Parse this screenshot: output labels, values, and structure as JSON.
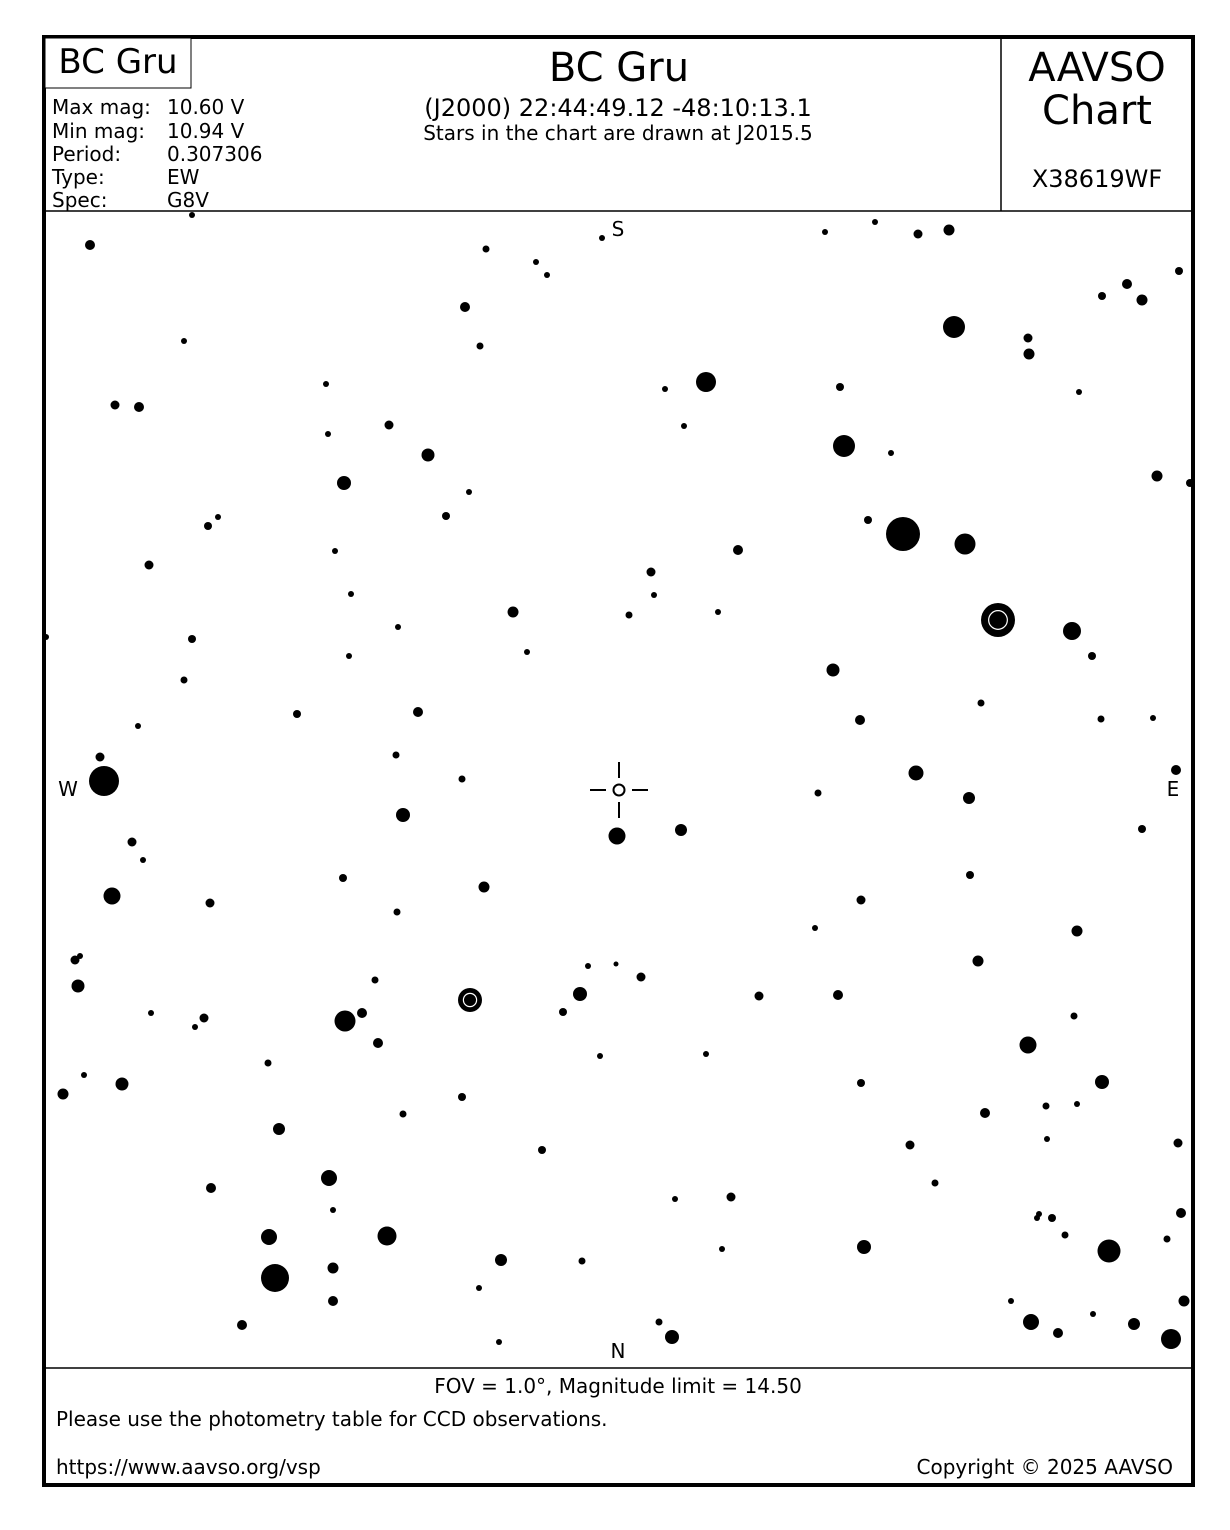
{
  "header": {
    "corner_name": "BC Gru",
    "title": "BC Gru",
    "coords": "(J2000) 22:44:49.12 -48:10:13.1",
    "epoch_note": "Stars in the chart are drawn at J2015.5",
    "brand_line1": "AAVSO",
    "brand_line2": "Chart",
    "chart_id": "X38619WF",
    "info": [
      {
        "label": "Max mag:",
        "value": "10.60 V"
      },
      {
        "label": "Min mag:",
        "value": "10.94 V"
      },
      {
        "label": "Period:",
        "value": "0.307306"
      },
      {
        "label": "Type:",
        "value": "EW"
      },
      {
        "label": "Spec:",
        "value": "G8V"
      }
    ]
  },
  "chart": {
    "directions": {
      "top": "S",
      "bottom": "N",
      "left": "W",
      "right": "E"
    },
    "star_color": "#000000",
    "target_marker": "crosshair-circle"
  },
  "footer": {
    "fov": "FOV = 1.0°, Magnitude limit = 14.50",
    "note": "Please use the photometry table for CCD observations.",
    "url": "https://www.aavso.org/vsp",
    "copyright": "Copyright © 2025 AAVSO"
  }
}
